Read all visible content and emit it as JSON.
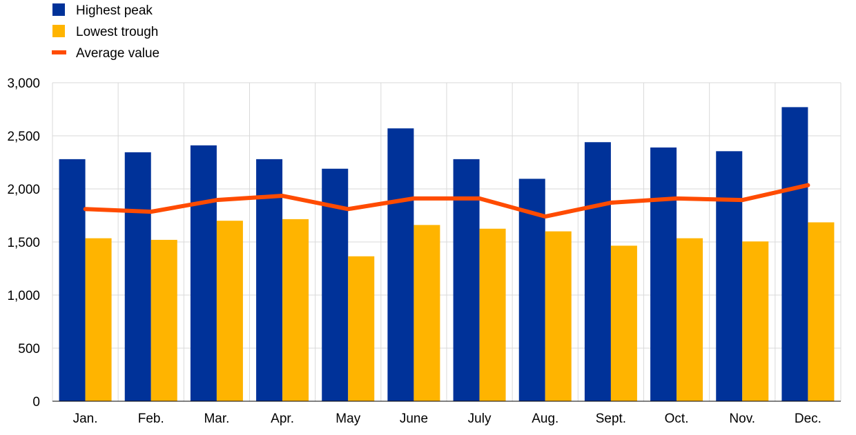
{
  "chart_data": {
    "type": "bar",
    "categories": [
      "Jan.",
      "Feb.",
      "Mar.",
      "Apr.",
      "May",
      "June",
      "July",
      "Aug.",
      "Sept.",
      "Oct.",
      "Nov.",
      "Dec."
    ],
    "series": [
      {
        "name": "Highest peak",
        "kind": "bar",
        "color": "#003299",
        "values": [
          2280,
          2345,
          2410,
          2280,
          2190,
          2570,
          2280,
          2095,
          2440,
          2390,
          2355,
          2770
        ]
      },
      {
        "name": "Lowest trough",
        "kind": "bar",
        "color": "#FFB400",
        "values": [
          1535,
          1520,
          1700,
          1715,
          1365,
          1660,
          1625,
          1600,
          1465,
          1535,
          1505,
          1685
        ]
      },
      {
        "name": "Average value",
        "kind": "line",
        "color": "#FF4B00",
        "values": [
          1810,
          1785,
          1895,
          1935,
          1810,
          1910,
          1910,
          1740,
          1870,
          1910,
          1895,
          2035
        ]
      }
    ],
    "ylim": [
      0,
      3000
    ],
    "yticks": [
      0,
      500,
      1000,
      1500,
      2000,
      2500,
      3000
    ],
    "ytick_labels": [
      "0",
      "500",
      "1,000",
      "1,500",
      "2,000",
      "2,500",
      "3,000"
    ],
    "grid": true,
    "legend_position": "top-left",
    "title": "",
    "xlabel": "",
    "ylabel": ""
  }
}
